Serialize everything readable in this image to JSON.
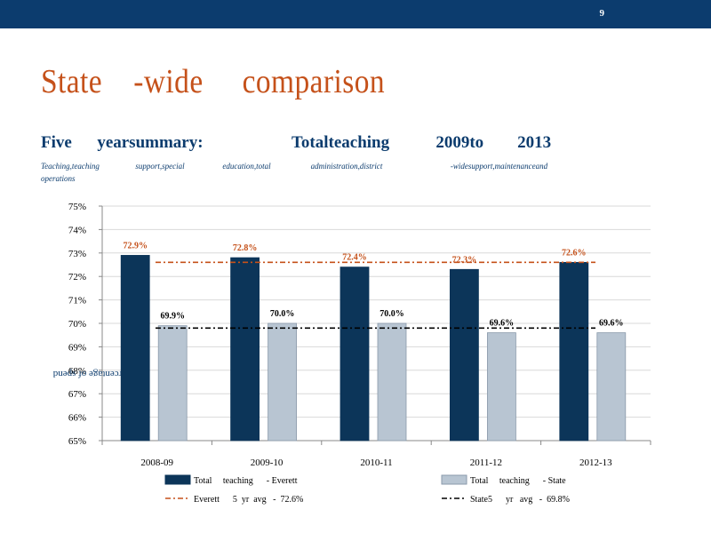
{
  "page_number": "9",
  "title": "State    -wide     comparison",
  "subtitle": "Five      yearsummary:                     Totalteaching           2009to        2013",
  "caption": "Teaching,teaching                  support,special                   education,total                    administration,district                                  -widesupport,maintenanceand\noperations",
  "colors": {
    "everett": "#0c3559",
    "state": "#b8c5d2",
    "everett_avg": "#c5511a",
    "state_avg": "#000000",
    "header": "#0c3c6e",
    "title": "#c5511a"
  },
  "chart_data": {
    "type": "bar",
    "categories": [
      "2008-09",
      "2009-10",
      "2010-11",
      "2011-12",
      "2012-13"
    ],
    "series": [
      {
        "name": "Total     teaching      - Everett",
        "values": [
          72.9,
          72.8,
          72.4,
          72.3,
          72.6
        ],
        "labels": [
          "72.9%",
          "72.8%",
          "72.4%",
          "72.3%",
          "72.6%"
        ]
      },
      {
        "name": "Total     teaching      - State",
        "values": [
          69.9,
          70.0,
          70.0,
          69.6,
          69.6
        ],
        "labels": [
          "69.9%",
          "70.0%",
          "70.0%",
          "69.6%",
          "69.6%"
        ]
      }
    ],
    "reference_lines": [
      {
        "name": "Everett      5  yr  avg   -  72.6%",
        "value": 72.6
      },
      {
        "name": "State5      yr   avg   -  69.8%",
        "value": 69.8
      }
    ],
    "ylabel": "Percentage of spend",
    "ylim": [
      65,
      75
    ],
    "yticks": [
      "65%",
      "66%",
      "67%",
      "68%",
      "69%",
      "70%",
      "71%",
      "72%",
      "73%",
      "74%",
      "75%"
    ],
    "grid": true,
    "legend_position": "bottom"
  }
}
